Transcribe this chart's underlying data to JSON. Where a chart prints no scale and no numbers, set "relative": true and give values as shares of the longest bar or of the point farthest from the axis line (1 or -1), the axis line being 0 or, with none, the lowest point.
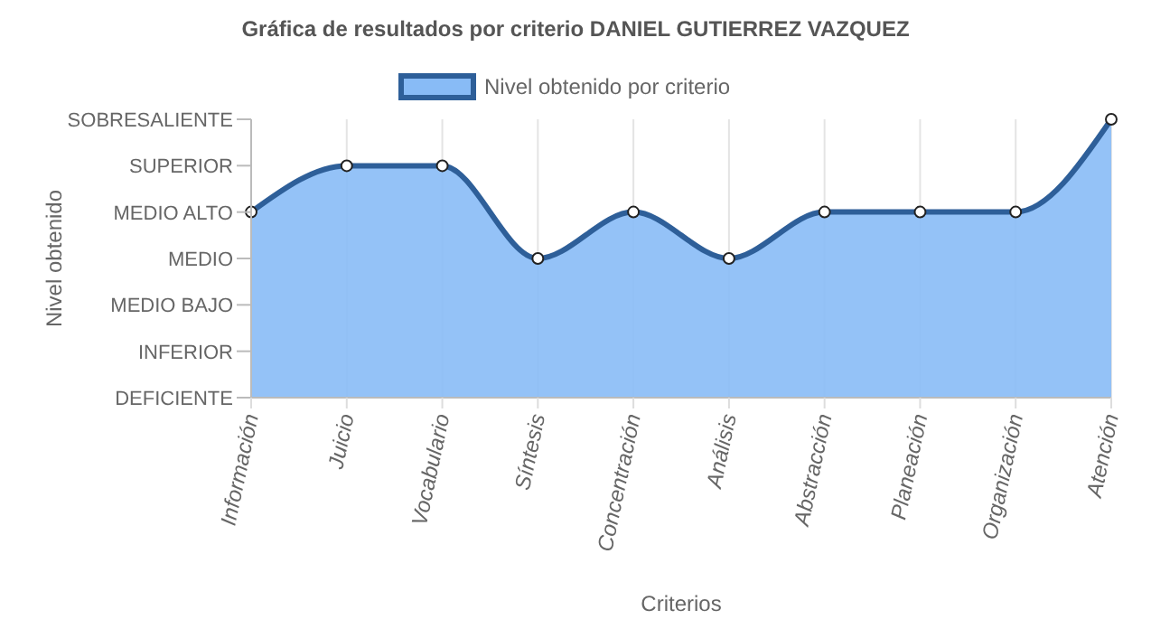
{
  "chart_data": {
    "type": "area",
    "title": "Gráfica de resultados por criterio DANIEL GUTIERREZ VAZQUEZ",
    "xlabel": "Criterios",
    "annotations": [
      "Nivel obtenido"
    ],
    "categories": [
      "Información",
      "Juicio",
      "Vocabulario",
      "Síntesis",
      "Concentración",
      "Análisis",
      "Abstracción",
      "Planeación",
      "Organización",
      "Atención"
    ],
    "y_categories": [
      "SOBRESALIENTE",
      "SUPERIOR",
      "MEDIO ALTO",
      "MEDIO",
      "MEDIO BAJO",
      "INFERIOR",
      "DEFICIENTE"
    ],
    "relative": true,
    "series": [
      {
        "name": "Nivel obtenido por criterio",
        "color": "#2e5f99",
        "values": [
          0.667,
          0.833,
          0.833,
          0.5,
          0.667,
          0.5,
          0.667,
          0.667,
          0.667,
          1
        ]
      }
    ],
    "grid": "x",
    "legend": "top",
    "marker": "circle",
    "line_style": "solid"
  }
}
